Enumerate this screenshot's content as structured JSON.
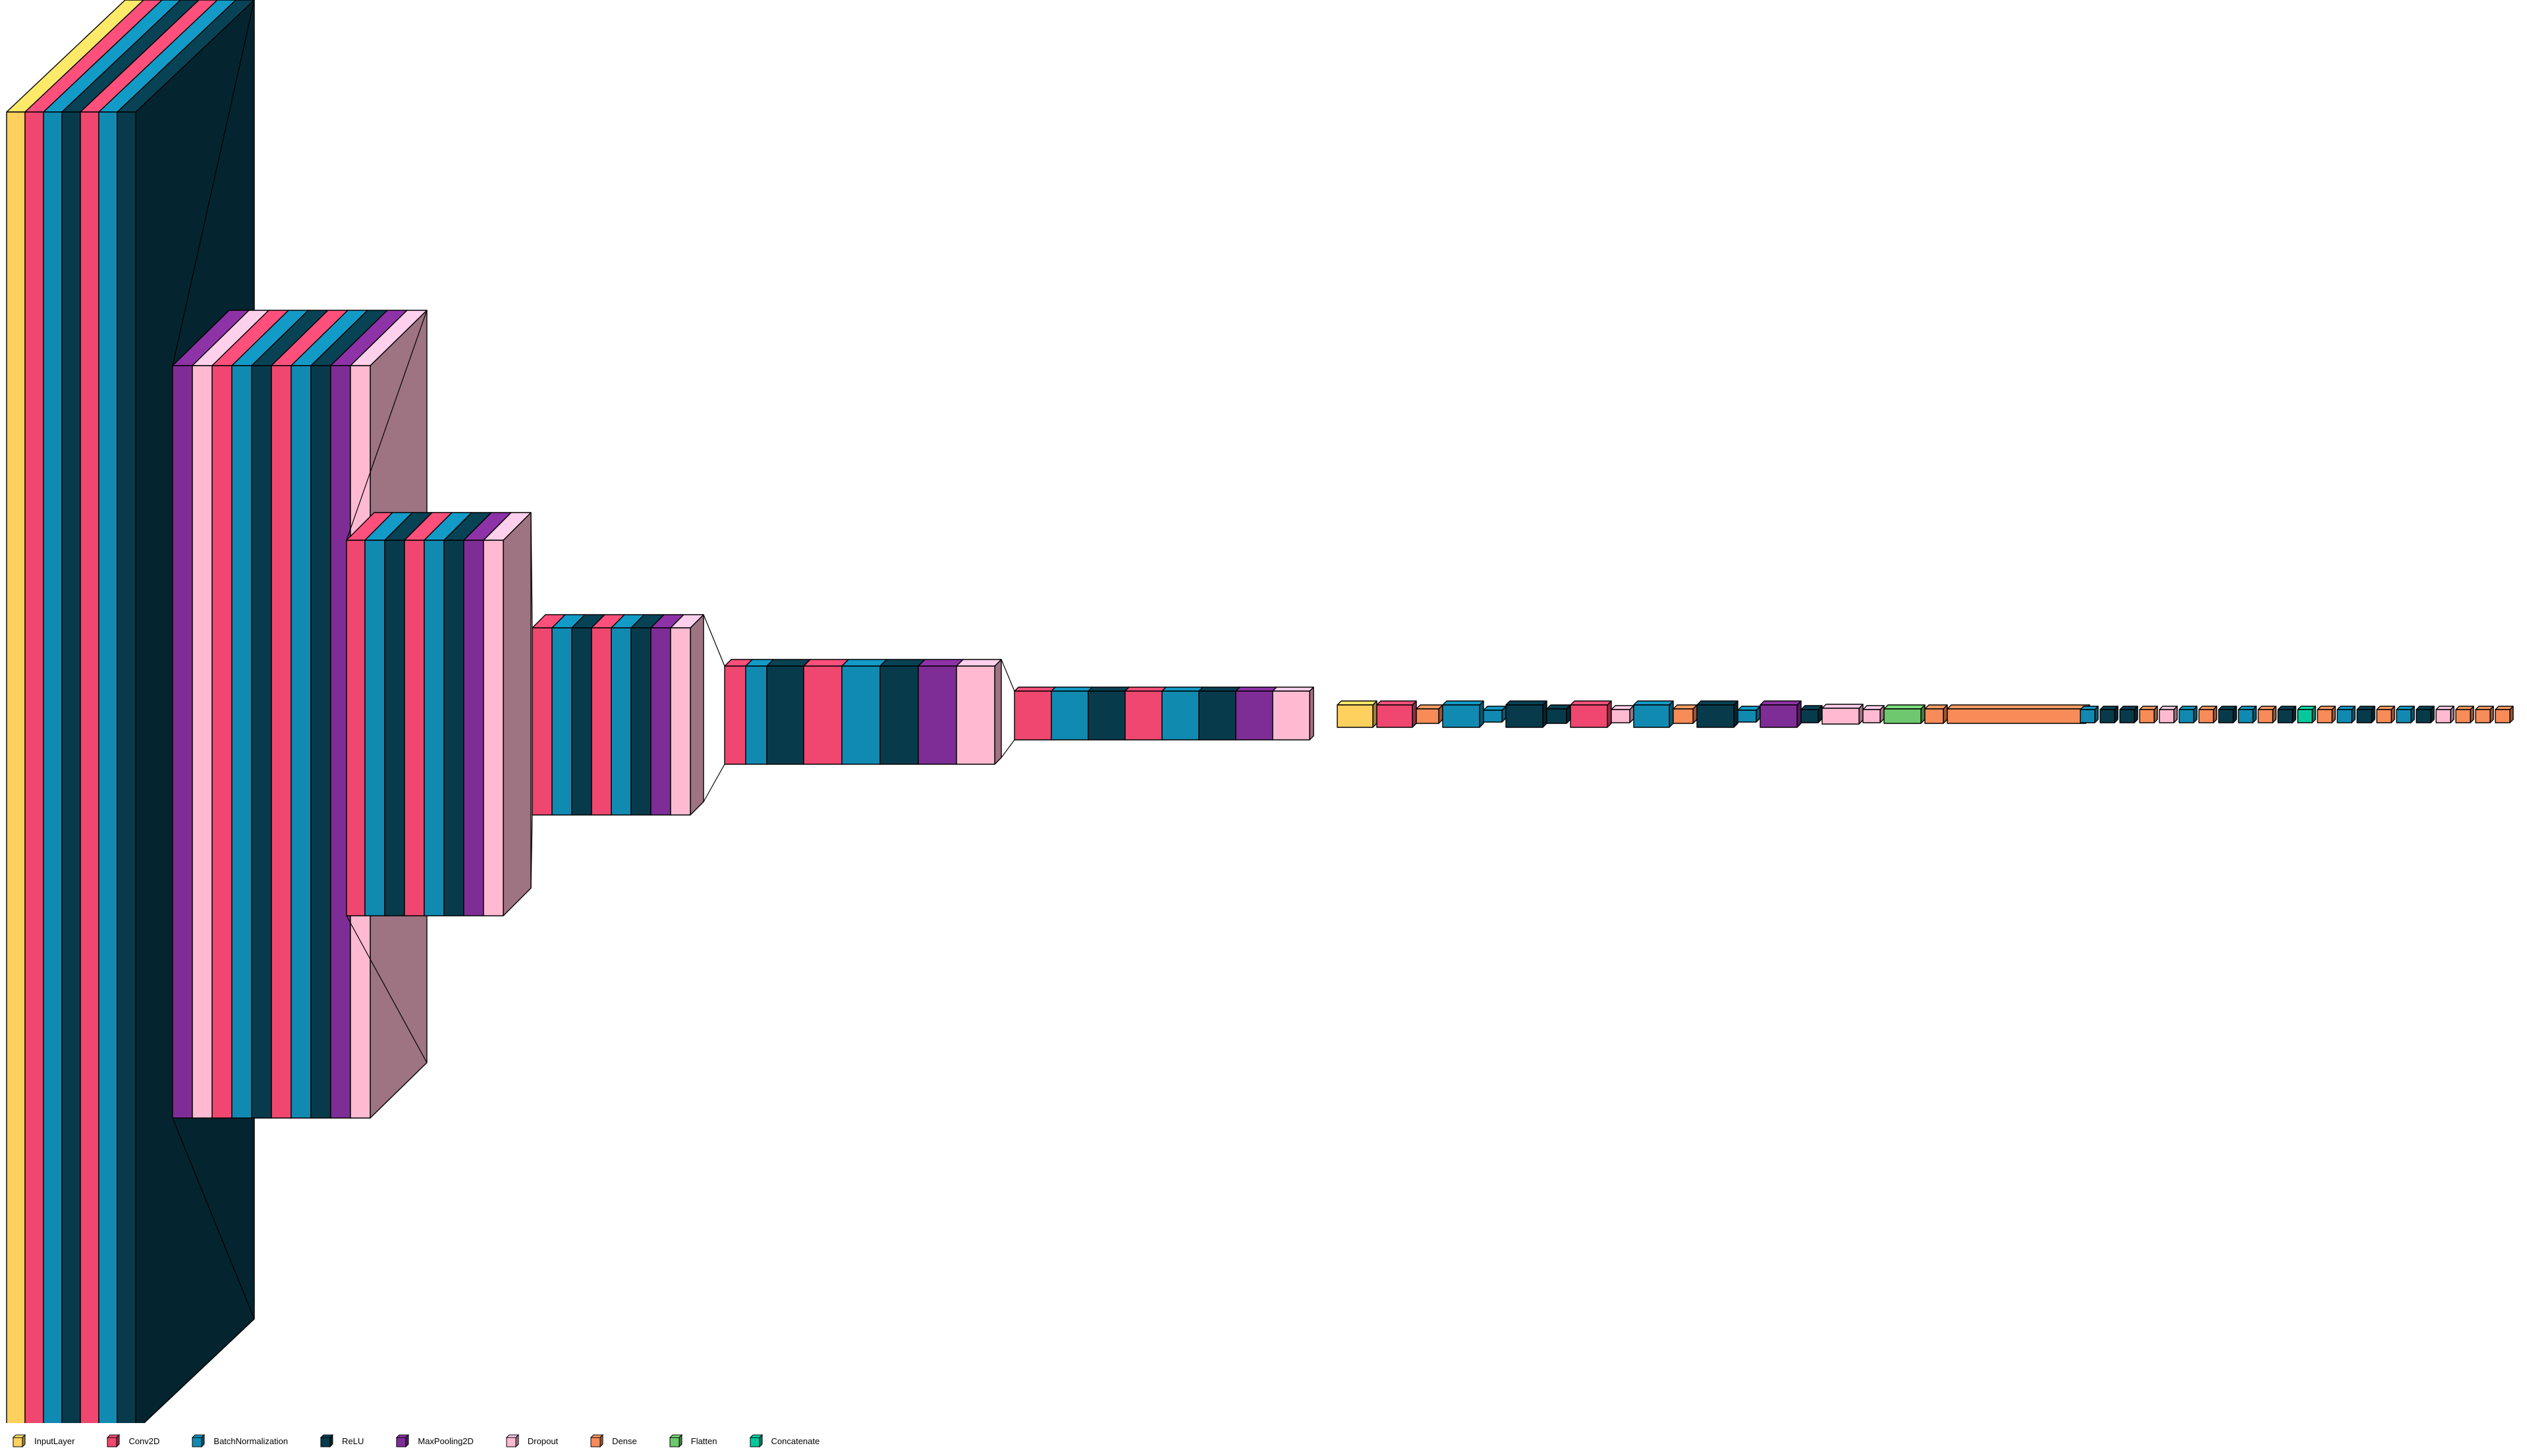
{
  "colors": {
    "InputLayer": "#fed05e",
    "Conv2D": "#ef476f",
    "BatchNormalization": "#118ab2",
    "ReLU": "#073b4c",
    "MaxPooling2D": "#7f2d96",
    "Dropout": "#ffbad2",
    "Dense": "#f78c59",
    "Flatten": "#6ec86e",
    "Concatenate": "#06c99b"
  },
  "legend": [
    {
      "label": "InputLayer",
      "type": "InputLayer"
    },
    {
      "label": "Conv2D",
      "type": "Conv2D"
    },
    {
      "label": "BatchNormalization",
      "type": "BatchNormalization"
    },
    {
      "label": "ReLU",
      "type": "ReLU"
    },
    {
      "label": "MaxPooling2D",
      "type": "MaxPooling2D"
    },
    {
      "label": "Dropout",
      "type": "Dropout"
    },
    {
      "label": "Dense",
      "type": "Dense"
    },
    {
      "label": "Flatten",
      "type": "Flatten"
    },
    {
      "label": "Concatenate",
      "type": "Concatenate"
    }
  ],
  "layers": [
    "InputLayer",
    "Conv2D",
    "BatchNormalization",
    "ReLU",
    "Conv2D",
    "BatchNormalization",
    "ReLU",
    "MaxPooling2D",
    "Dropout",
    "Conv2D",
    "BatchNormalization",
    "ReLU",
    "Conv2D",
    "BatchNormalization",
    "ReLU",
    "MaxPooling2D",
    "Dropout",
    "Conv2D",
    "BatchNormalization",
    "ReLU",
    "Conv2D",
    "BatchNormalization",
    "ReLU",
    "MaxPooling2D",
    "Dropout",
    "Conv2D",
    "BatchNormalization",
    "ReLU",
    "Conv2D",
    "BatchNormalization",
    "ReLU",
    "MaxPooling2D",
    "Dropout",
    "Conv2D",
    "BatchNormalization",
    "ReLU",
    "Conv2D",
    "BatchNormalization",
    "ReLU",
    "MaxPooling2D",
    "Dropout",
    "Conv2D",
    "BatchNormalization",
    "ReLU",
    "Conv2D",
    "BatchNormalization",
    "ReLU",
    "MaxPooling2D",
    "Dropout",
    "InputLayer",
    "Conv2D",
    "Dense",
    "BatchNormalization",
    "BatchNormalization",
    "ReLU",
    "ReLU",
    "Conv2D",
    "Dropout",
    "BatchNormalization",
    "Dense",
    "ReLU",
    "BatchNormalization",
    "MaxPooling2D",
    "ReLU",
    "Dropout",
    "Dropout",
    "Flatten",
    "Dense",
    "Dense",
    "BatchNormalization",
    "ReLU",
    "ReLU",
    "Dense",
    "Dropout",
    "BatchNormalization",
    "Dense",
    "ReLU",
    "BatchNormalization",
    "Dense",
    "ReLU",
    "Concatenate",
    "Dense",
    "BatchNormalization",
    "ReLU",
    "Dense",
    "BatchNormalization",
    "ReLU",
    "Dropout",
    "Dense"
  ]
}
